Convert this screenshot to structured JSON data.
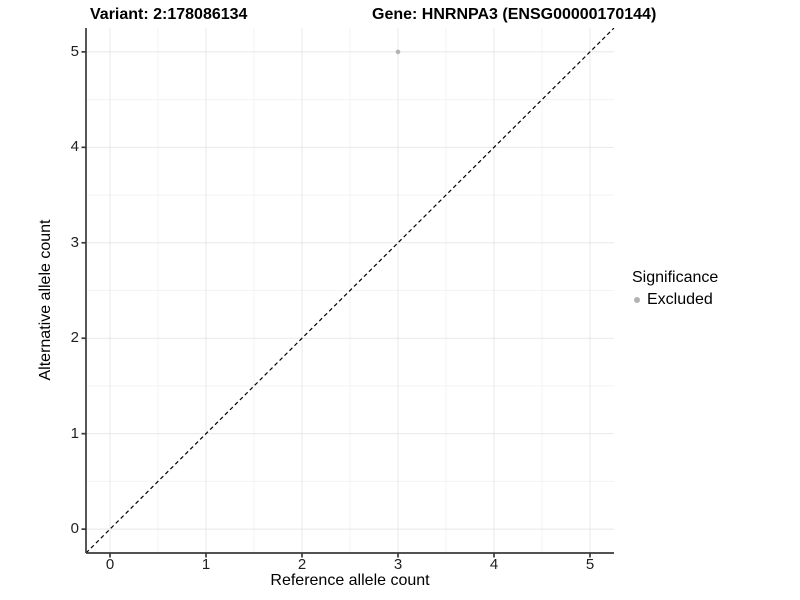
{
  "chart_data": {
    "type": "scatter",
    "title_left": "Variant: 2:178086134",
    "title_right": "Gene: HNRNPA3 (ENSG00000170144)",
    "xlabel": "Reference allele count",
    "ylabel": "Alternative allele count",
    "xlim": [
      -0.25,
      5.25
    ],
    "ylim": [
      -0.25,
      5.25
    ],
    "x_ticks": [
      0,
      1,
      2,
      3,
      4,
      5
    ],
    "y_ticks": [
      0,
      1,
      2,
      3,
      4,
      5
    ],
    "x_minor": [
      0.5,
      1.5,
      2.5,
      3.5,
      4.5
    ],
    "y_minor": [
      0.5,
      1.5,
      2.5,
      3.5,
      4.5
    ],
    "grid": "major+minor",
    "legend_position": "right",
    "reference_line": {
      "slope": 1,
      "intercept": 0,
      "style": "dashed",
      "color": "#000000"
    },
    "series": [
      {
        "name": "Excluded",
        "color": "#b3b3b3",
        "points": [
          {
            "x": 3,
            "y": 5
          }
        ]
      }
    ],
    "legend": {
      "title": "Significance",
      "items": [
        {
          "label": "Excluded",
          "color": "#b3b3b3",
          "marker": "point-icon"
        }
      ]
    }
  },
  "colors": {
    "grid_major": "#e8e8e8",
    "grid_minor": "#f3f3f3",
    "axis_line": "#3a3a3a",
    "reference_line": "#000000",
    "point_excluded": "#b3b3b3",
    "tick_text": "#1f1f1f",
    "text": "#000000"
  }
}
